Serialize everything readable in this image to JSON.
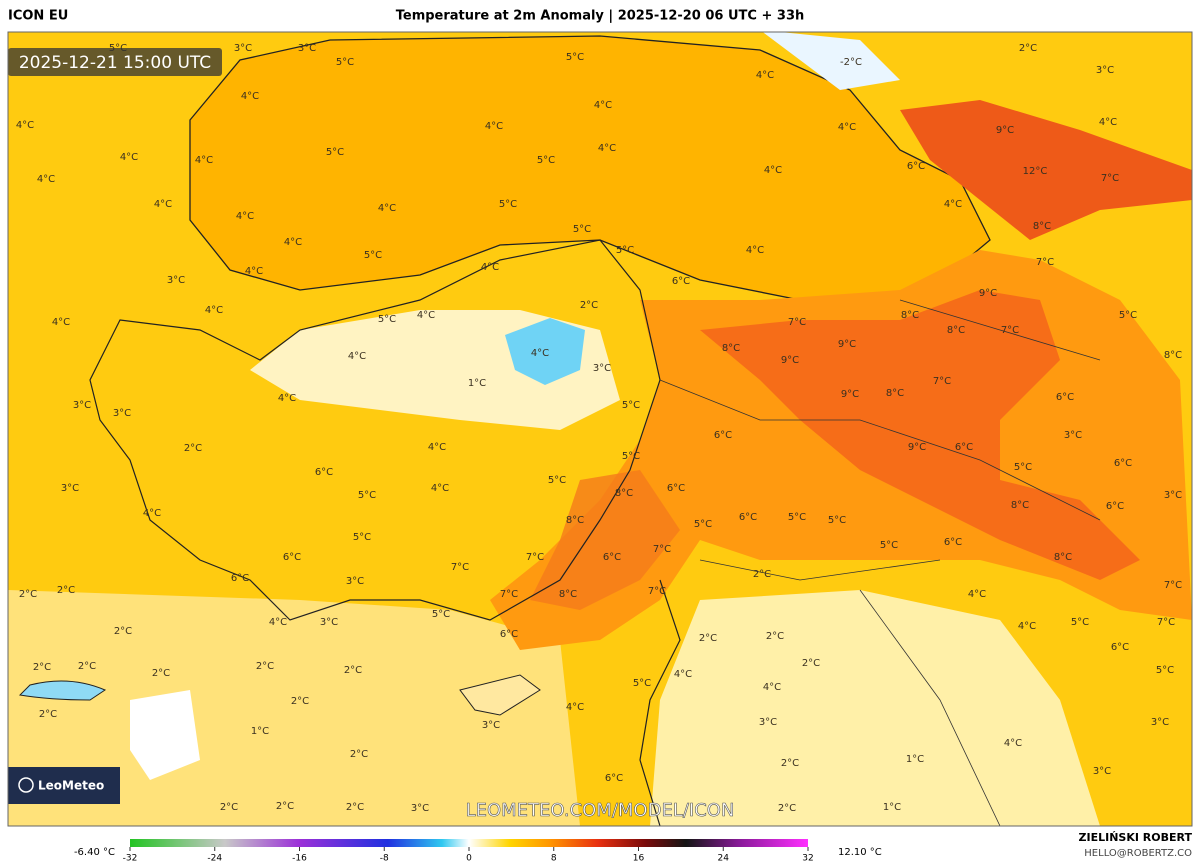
{
  "header": {
    "model": "ICON EU",
    "title": "Temperature at 2m Anomaly | 2025-12-20 06 UTC + 33h"
  },
  "map": {
    "valid_time": "2025-12-21 15:00 UTC",
    "anomaly_labels": [
      "5°C",
      "3°C",
      "3°C",
      "5°C",
      "5°C",
      "-2°C",
      "2°C",
      "3°C",
      "4°C",
      "4°C",
      "4°C",
      "4°C",
      "4°C",
      "4°C",
      "4°C",
      "5°C",
      "5°C",
      "4°C",
      "4°C",
      "9°C",
      "4°C",
      "6°C",
      "4°C",
      "12°C",
      "7°C",
      "4°C",
      "4°C",
      "4°C",
      "4°C",
      "5°C",
      "5°C",
      "4°C",
      "8°C",
      "4°C",
      "5°C",
      "5°C",
      "4°C",
      "4°C",
      "4°C",
      "6°C",
      "7°C",
      "3°C",
      "2°C",
      "9°C",
      "4°C",
      "4°C",
      "5°C",
      "4°C",
      "7°C",
      "8°C",
      "5°C",
      "4°C",
      "8°C",
      "9°C",
      "8°C",
      "7°C",
      "4°C",
      "9°C",
      "8°C",
      "1°C",
      "3°C",
      "7°C",
      "9°C",
      "8°C",
      "4°C",
      "6°C",
      "3°C",
      "3°C",
      "5°C",
      "6°C",
      "3°C",
      "2°C",
      "4°C",
      "9°C",
      "6°C",
      "5°C",
      "6°C",
      "5°C",
      "6°C",
      "3°C",
      "4°C",
      "5°C",
      "6°C",
      "8°C",
      "5°C",
      "3°C",
      "8°C",
      "4°C",
      "8°C",
      "5°C",
      "6°C",
      "5°C",
      "5°C",
      "6°C",
      "5°C",
      "6°C",
      "5°C",
      "7°C",
      "6°C",
      "7°C",
      "8°C",
      "6°C",
      "7°C",
      "6°C",
      "2°C",
      "3°C",
      "7°C",
      "2°C",
      "2°C",
      "4°C",
      "7°C",
      "8°C",
      "7°C",
      "5°C",
      "4°C",
      "3°C",
      "4°C",
      "5°C",
      "7°C",
      "2°C",
      "6°C",
      "2°C",
      "2°C",
      "6°C",
      "2°C",
      "2°C",
      "2°C",
      "2°C",
      "5°C",
      "2°C",
      "5°C",
      "4°C",
      "2°C",
      "4°C",
      "2°C",
      "2°C",
      "4°C",
      "3°C",
      "3°C",
      "3°C",
      "1°C",
      "1°C",
      "4°C",
      "2°C",
      "2°C",
      "3°C",
      "6°C",
      "2°C",
      "2°C",
      "2°C",
      "3°C",
      "2°C",
      "1°C"
    ],
    "logo": "LeoMeteo",
    "watermark": "LEOMETEO.COM/MODEL/ICON"
  },
  "colorbar": {
    "min_label": "-6.40 °C",
    "max_label": "12.10 °C",
    "ticks": [
      -32,
      -24,
      -16,
      -8,
      0,
      8,
      16,
      24,
      32
    ]
  },
  "footer": {
    "author": "ZIELIŃSKI ROBERT",
    "email": "HELLO@ROBERTZ.CO"
  }
}
